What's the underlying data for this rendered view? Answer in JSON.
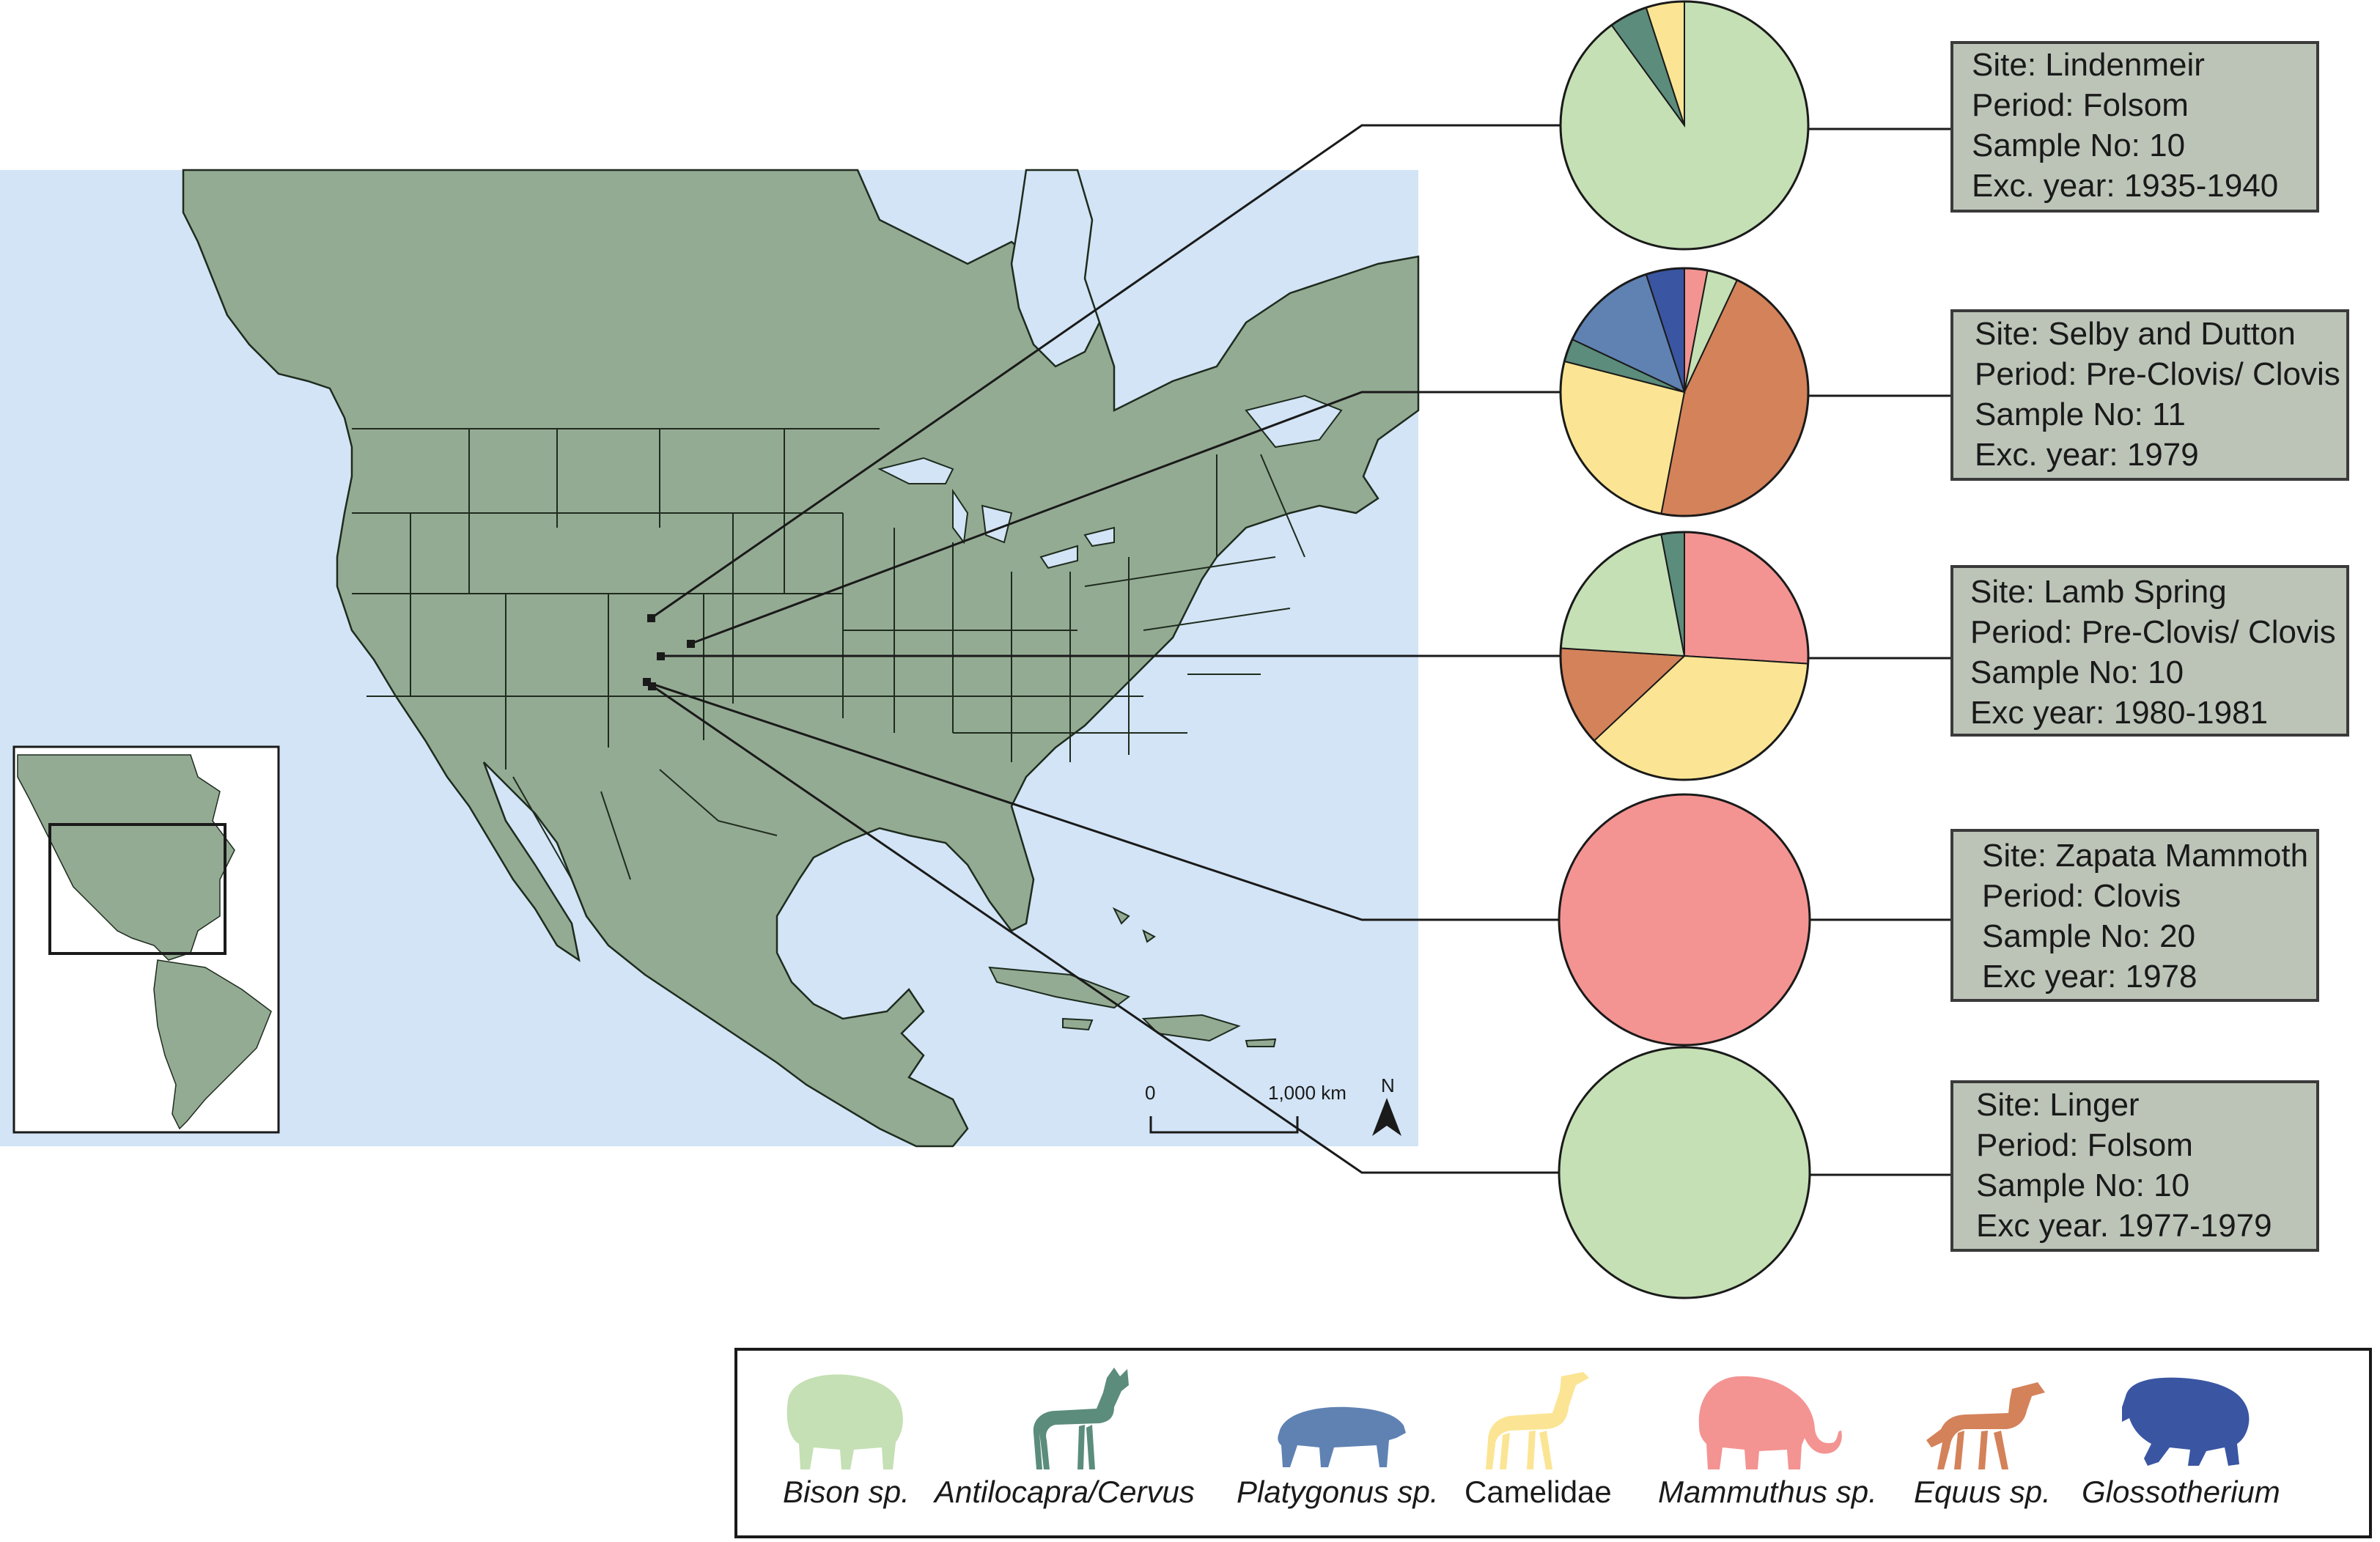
{
  "colors": {
    "ocean": "#d2e4f5",
    "land": "#94ab93",
    "border": "#1e2b1e",
    "box_fill": "#bcc4b8",
    "box_stroke": "#3a3a3a",
    "Bison sp.": "#c5e0b4",
    "Antilocapra/Cervus": "#5b8c7c",
    "Platygonus sp.": "#5f82b3",
    "Camelidae": "#fbe594",
    "Mammuthus sp.": "#f39492",
    "Equus sp.": "#d4825a",
    "Glossotherium": "#3a55a2"
  },
  "map": {
    "scale_start": "0",
    "scale_end": "1,000 km",
    "north": "N"
  },
  "sites": [
    {
      "lines": [
        "Site: Lindenmeir",
        "Period: Folsom",
        "Sample No: 10",
        "Exc. year: 1935-1940"
      ],
      "composition": [
        {
          "taxon": "Bison sp.",
          "proportion": 0.9
        },
        {
          "taxon": "Antilocapra/Cervus",
          "proportion": 0.05
        },
        {
          "taxon": "Camelidae",
          "proportion": 0.05
        }
      ]
    },
    {
      "lines": [
        "Site: Selby and Dutton",
        "Period: Pre-Clovis/ Clovis",
        "Sample No: 11",
        "Exc. year: 1979"
      ],
      "composition": [
        {
          "taxon": "Mammuthus sp.",
          "proportion": 0.03
        },
        {
          "taxon": "Bison sp.",
          "proportion": 0.04
        },
        {
          "taxon": "Equus sp.",
          "proportion": 0.46
        },
        {
          "taxon": "Camelidae",
          "proportion": 0.26
        },
        {
          "taxon": "Antilocapra/Cervus",
          "proportion": 0.03
        },
        {
          "taxon": "Platygonus sp.",
          "proportion": 0.13
        },
        {
          "taxon": "Glossotherium",
          "proportion": 0.05
        }
      ]
    },
    {
      "lines": [
        "Site: Lamb Spring",
        "Period: Pre-Clovis/ Clovis",
        "Sample No: 10",
        "Exc year: 1980-1981"
      ],
      "composition": [
        {
          "taxon": "Mammuthus sp.",
          "proportion": 0.26
        },
        {
          "taxon": "Camelidae",
          "proportion": 0.37
        },
        {
          "taxon": "Equus sp.",
          "proportion": 0.13
        },
        {
          "taxon": "Bison sp.",
          "proportion": 0.21
        },
        {
          "taxon": "Antilocapra/Cervus",
          "proportion": 0.03
        }
      ]
    },
    {
      "lines": [
        "Site: Zapata Mammoth",
        "Period: Clovis",
        "Sample No: 20",
        "Exc year: 1978"
      ],
      "composition": [
        {
          "taxon": "Mammuthus sp.",
          "proportion": 1.0
        }
      ]
    },
    {
      "lines": [
        "Site: Linger",
        "Period: Folsom",
        "Sample No: 10",
        "Exc year. 1977-1979"
      ],
      "composition": [
        {
          "taxon": "Bison sp.",
          "proportion": 1.0
        }
      ]
    }
  ],
  "legend": [
    {
      "label": "Bison sp.",
      "italic": true,
      "icon": "bison-icon"
    },
    {
      "label": "Antilocapra/Cervus",
      "italic": true,
      "icon": "pronghorn-icon"
    },
    {
      "label": "Platygonus sp.",
      "italic": true,
      "icon": "peccary-icon"
    },
    {
      "label": "Camelidae",
      "italic": false,
      "icon": "camel-icon"
    },
    {
      "label": "Mammuthus sp.",
      "italic": true,
      "icon": "mammoth-icon"
    },
    {
      "label": "Equus sp.",
      "italic": true,
      "icon": "horse-icon"
    },
    {
      "label": "Glossotherium",
      "italic": true,
      "icon": "ground-sloth-icon"
    }
  ]
}
